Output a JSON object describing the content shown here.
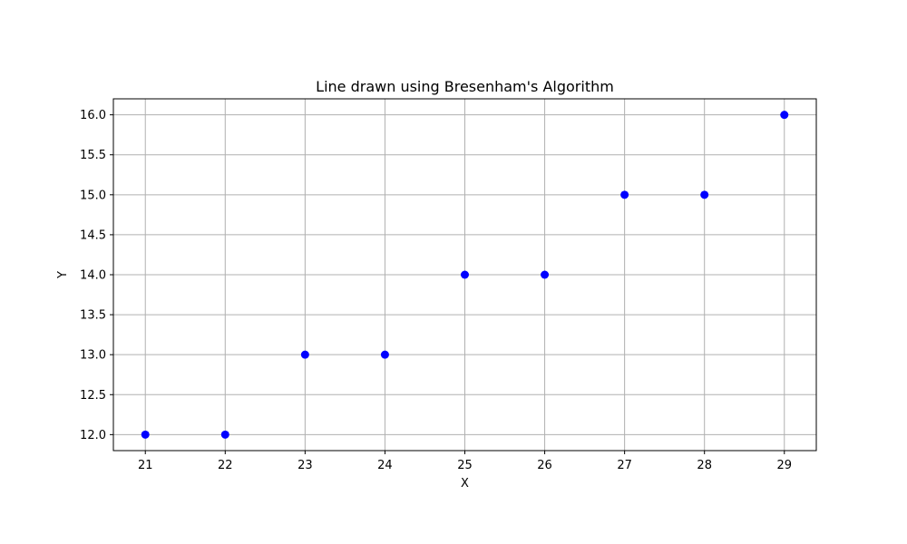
{
  "chart_data": {
    "type": "scatter",
    "title": "Line drawn using Bresenham's Algorithm",
    "xlabel": "X",
    "ylabel": "Y",
    "x": [
      21,
      22,
      23,
      24,
      25,
      26,
      27,
      28,
      29
    ],
    "y": [
      12,
      12,
      13,
      13,
      14,
      14,
      15,
      15,
      16
    ],
    "xlim": [
      20.6,
      29.4
    ],
    "ylim": [
      11.8,
      16.2
    ],
    "x_ticks": [
      "21",
      "22",
      "23",
      "24",
      "25",
      "26",
      "27",
      "28",
      "29"
    ],
    "y_ticks": [
      "12.0",
      "12.5",
      "13.0",
      "13.5",
      "14.0",
      "14.5",
      "15.0",
      "15.5",
      "16.0"
    ],
    "grid": true,
    "marker_color": "#0000ff",
    "grid_color": "#b0b0b0"
  }
}
